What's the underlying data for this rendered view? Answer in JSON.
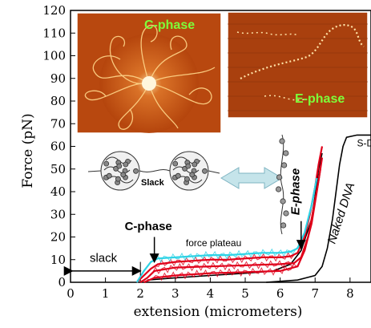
{
  "chart_data": {
    "type": "line",
    "title": "",
    "xlabel": "extension (micrometers)",
    "ylabel": "Force (pN)",
    "xlim": [
      0,
      8.6
    ],
    "ylim": [
      0,
      120
    ],
    "x_ticks": [
      "0",
      "1",
      "2",
      "3",
      "4",
      "5",
      "6",
      "7",
      "8"
    ],
    "y_ticks": [
      "0",
      "10",
      "20",
      "30",
      "40",
      "50",
      "60",
      "70",
      "80",
      "90",
      "100",
      "110",
      "120"
    ],
    "grid": false,
    "series": [
      {
        "name": "Naked DNA",
        "color": "#000000",
        "x": [
          5.6,
          6.5,
          7.0,
          7.2,
          7.35,
          7.5,
          7.6,
          7.7,
          7.8,
          7.9,
          8.2,
          8.6
        ],
        "y": [
          0,
          1,
          3,
          7,
          15,
          28,
          40,
          52,
          60,
          64,
          65,
          65
        ]
      },
      {
        "name": "",
        "color": "#000000",
        "x": [
          2.2,
          3.0,
          4.0,
          5.0,
          5.8,
          6.3,
          6.6,
          6.9,
          7.0,
          7.1,
          7.2
        ],
        "y": [
          1,
          2,
          3,
          4,
          5,
          8,
          14,
          28,
          38,
          50,
          57
        ]
      },
      {
        "name": "",
        "color": "#e0001a",
        "x": [
          1.9,
          2.1,
          2.3,
          2.5,
          3.0,
          3.5,
          4.0,
          4.5,
          5.0,
          5.5,
          6.0,
          6.3,
          6.5,
          6.7,
          6.85,
          7.0,
          7.1,
          7.2
        ],
        "y": [
          0,
          3,
          6,
          8,
          9,
          9.5,
          10,
          10,
          10.5,
          11,
          11,
          11.5,
          13,
          20,
          30,
          42,
          52,
          60
        ]
      },
      {
        "name": "",
        "color": "#e0001a",
        "x": [
          2.0,
          2.2,
          2.4,
          3.0,
          4.0,
          5.0,
          6.0,
          6.4,
          6.6,
          6.8,
          6.95,
          7.1,
          7.2
        ],
        "y": [
          0,
          2,
          5,
          6.5,
          7,
          7.5,
          8,
          8.5,
          11,
          20,
          32,
          45,
          55
        ]
      },
      {
        "name": "",
        "color": "#e0001a",
        "x": [
          2.1,
          2.4,
          3.0,
          4.0,
          5.0,
          6.0,
          6.5,
          6.7,
          6.9,
          7.05,
          7.15
        ],
        "y": [
          0,
          2,
          3,
          4,
          4.5,
          5,
          7,
          14,
          26,
          40,
          50
        ]
      },
      {
        "name": "",
        "color": "#2ed3e6",
        "x": [
          1.9,
          2.1,
          2.3,
          2.5,
          3.0,
          3.5,
          4.0,
          4.5,
          5.0,
          5.5,
          6.0,
          6.3,
          6.5,
          6.7,
          6.9,
          7.05
        ],
        "y": [
          0,
          5,
          9,
          10.5,
          11,
          11.5,
          12,
          12,
          12.5,
          13,
          13,
          13.5,
          15,
          22,
          34,
          46
        ]
      }
    ],
    "annotations": [
      {
        "text": "slack",
        "x": 0.55,
        "y": 9
      },
      {
        "text": "C-phase",
        "x": 2.4,
        "y": 23
      },
      {
        "text": "force plateau",
        "x": 5.0,
        "y": 16
      },
      {
        "text": "E-phase",
        "x": 6.6,
        "y": 40
      },
      {
        "text": "Naked DNA",
        "x": 7.85,
        "y": 30
      },
      {
        "text": "S-DN",
        "x": 8.2,
        "y": 60
      },
      {
        "text": "Slack",
        "x": 2.25,
        "y": 45
      }
    ],
    "insets": [
      {
        "label": "C-phase"
      },
      {
        "label": "E-phase"
      }
    ]
  },
  "colors": {
    "inset_bg": "#b8480f",
    "inset_bright": "#ffd68a",
    "inset_label": "#7dff3a",
    "arrow_fill": "#c5e4ea"
  }
}
